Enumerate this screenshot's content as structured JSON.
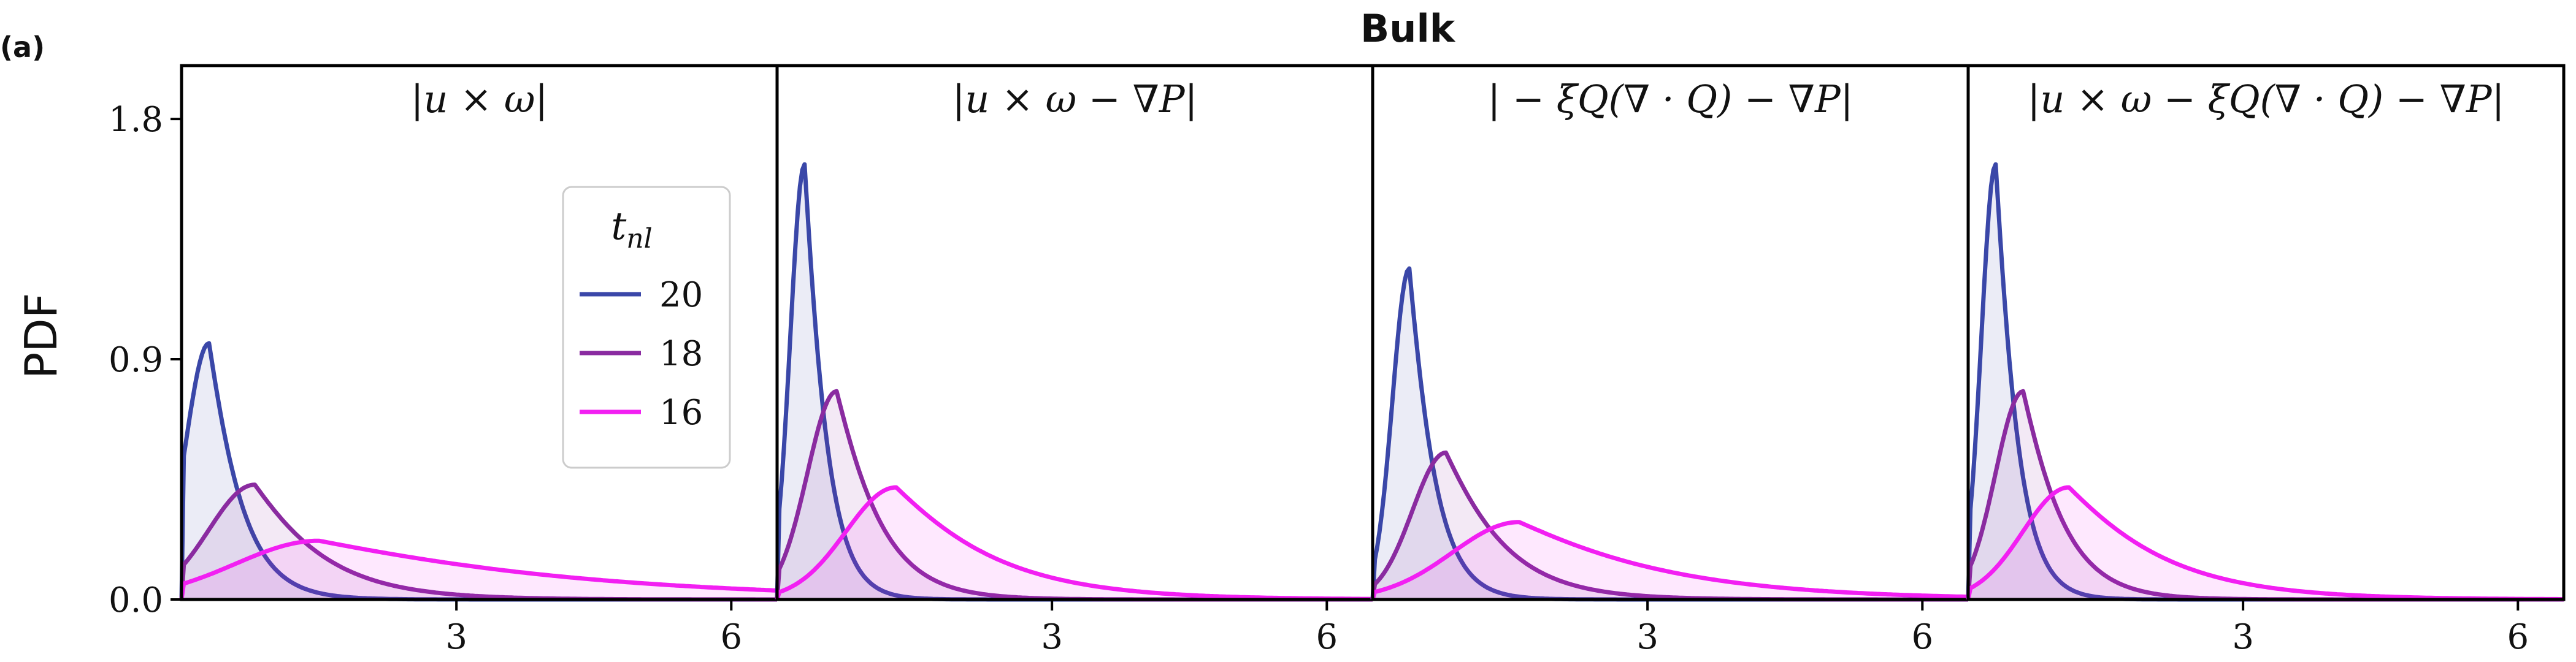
{
  "figure": {
    "panel_label": "(a)",
    "title": "Bulk",
    "ylabel": "PDF",
    "legend_title": "t",
    "legend_title_sub": "nl"
  },
  "colors": {
    "t20": "#3a47a8",
    "t18": "#8a2ba0",
    "t16": "#f21ff2",
    "fill20": "#3a47a8",
    "fill18": "#8a2ba0",
    "fill16": "#f21ff2",
    "axes": "#000000"
  },
  "chart_data": {
    "type": "line",
    "ylim": [
      0,
      2.0
    ],
    "xlim": [
      0,
      6.5
    ],
    "yticks": [
      0.0,
      0.9,
      1.8
    ],
    "ytick_labels": [
      "0.0",
      "0.9",
      "1.8"
    ],
    "xticks": [
      3,
      6
    ],
    "xtick_labels": [
      "3",
      "6"
    ],
    "grid": false,
    "legend_placement": "upper-center of first panel",
    "legend": [
      {
        "label": "20",
        "color_key": "t20"
      },
      {
        "label": "18",
        "color_key": "t18"
      },
      {
        "label": "16",
        "color_key": "t16"
      }
    ],
    "panels": [
      {
        "title": "|u × ω|",
        "series": [
          {
            "name": "20",
            "color_key": "t20",
            "peak_x": 0.3,
            "peak_y": 0.96,
            "rise": 0.28,
            "decay": 0.45
          },
          {
            "name": "18",
            "color_key": "t18",
            "peak_x": 0.8,
            "peak_y": 0.43,
            "rise": 0.55,
            "decay": 0.95
          },
          {
            "name": "16",
            "color_key": "t16",
            "peak_x": 1.5,
            "peak_y": 0.22,
            "rise": 1.0,
            "decay": 3.5
          }
        ]
      },
      {
        "title": "|u × ω − ∇P|",
        "series": [
          {
            "name": "20",
            "color_key": "t20",
            "peak_x": 0.3,
            "peak_y": 1.63,
            "rise": 0.17,
            "decay": 0.3
          },
          {
            "name": "18",
            "color_key": "t18",
            "peak_x": 0.65,
            "peak_y": 0.78,
            "rise": 0.35,
            "decay": 0.6
          },
          {
            "name": "16",
            "color_key": "t16",
            "peak_x": 1.3,
            "peak_y": 0.42,
            "rise": 0.6,
            "decay": 1.35
          }
        ]
      },
      {
        "title": "| − ξQ(∇ · Q) − ∇P|",
        "series": [
          {
            "name": "20",
            "color_key": "t20",
            "peak_x": 0.4,
            "peak_y": 1.24,
            "rise": 0.2,
            "decay": 0.35
          },
          {
            "name": "18",
            "color_key": "t18",
            "peak_x": 0.8,
            "peak_y": 0.55,
            "rise": 0.4,
            "decay": 0.8
          },
          {
            "name": "16",
            "color_key": "t16",
            "peak_x": 1.6,
            "peak_y": 0.29,
            "rise": 0.8,
            "decay": 2.0
          }
        ]
      },
      {
        "title": "|u × ω − ξQ(∇ · Q) − ∇P|",
        "series": [
          {
            "name": "20",
            "color_key": "t20",
            "peak_x": 0.3,
            "peak_y": 1.63,
            "rise": 0.17,
            "decay": 0.3
          },
          {
            "name": "18",
            "color_key": "t18",
            "peak_x": 0.6,
            "peak_y": 0.78,
            "rise": 0.33,
            "decay": 0.55
          },
          {
            "name": "16",
            "color_key": "t16",
            "peak_x": 1.1,
            "peak_y": 0.42,
            "rise": 0.55,
            "decay": 1.3
          }
        ]
      }
    ]
  }
}
